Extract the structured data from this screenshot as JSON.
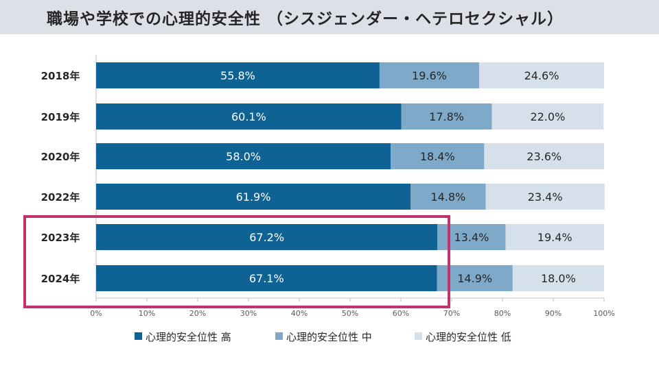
{
  "header": {
    "title": "職場や学校での心理的安全性 （シスジェンダー・ヘテロセクシャル）"
  },
  "chart_data": {
    "type": "bar",
    "orientation": "horizontal",
    "stacked": true,
    "title": "職場や学校での心理的安全性 （シスジェンダー・ヘテロセクシャル）",
    "categories": [
      "2018年",
      "2019年",
      "2020年",
      "2022年",
      "2023年",
      "2024年"
    ],
    "series": [
      {
        "name": "心理的安全位性 高",
        "color": "#0e6394",
        "values": [
          55.8,
          60.1,
          58.0,
          61.9,
          67.2,
          67.1
        ],
        "labels": [
          "55.8%",
          "60.1%",
          "58.0%",
          "61.9%",
          "67.2%",
          "67.1%"
        ]
      },
      {
        "name": "心理的安全位性 中",
        "color": "#7fa9c8",
        "values": [
          19.6,
          17.8,
          18.4,
          14.8,
          13.4,
          14.9
        ],
        "labels": [
          "19.6%",
          "17.8%",
          "18.4%",
          "14.8%",
          "13.4%",
          "14.9%"
        ]
      },
      {
        "name": "心理的安全位性 低",
        "color": "#d5e0ea",
        "values": [
          24.6,
          22.0,
          23.6,
          23.4,
          19.4,
          18.0
        ],
        "labels": [
          "24.6%",
          "22.0%",
          "23.6%",
          "23.4%",
          "19.4%",
          "18.0%"
        ]
      }
    ],
    "xlim": [
      0,
      100
    ],
    "xticks": [
      "0%",
      "10%",
      "20%",
      "30%",
      "40%",
      "50%",
      "60%",
      "70%",
      "80%",
      "90%",
      "100%"
    ],
    "legend_position": "bottom",
    "highlight": {
      "categories": [
        "2023年",
        "2024年"
      ],
      "color": "#c2336e"
    }
  }
}
